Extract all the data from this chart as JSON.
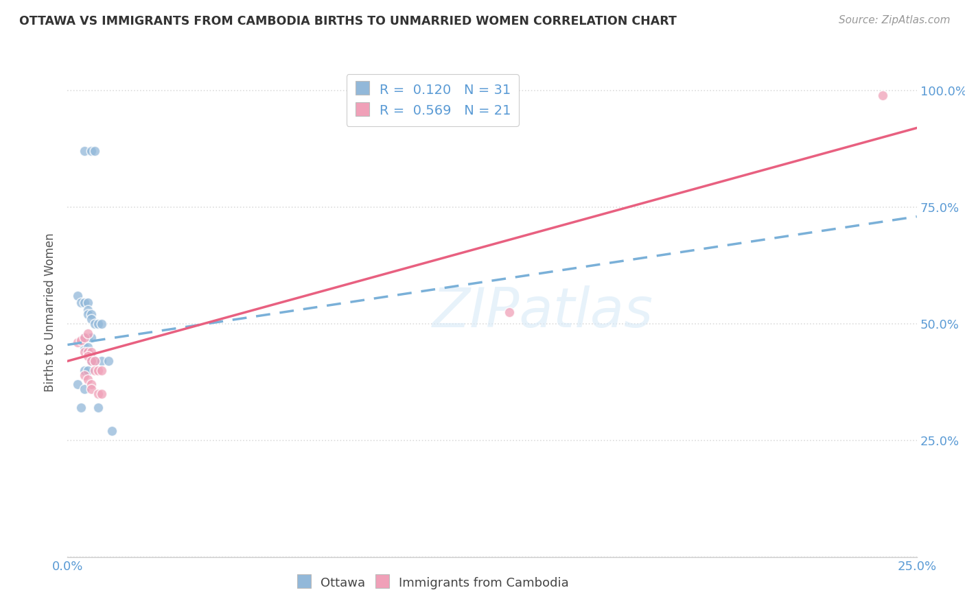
{
  "title": "OTTAWA VS IMMIGRANTS FROM CAMBODIA BIRTHS TO UNMARRIED WOMEN CORRELATION CHART",
  "source": "Source: ZipAtlas.com",
  "ylabel": "Births to Unmarried Women",
  "xlim": [
    0.0,
    0.25
  ],
  "ylim": [
    0.0,
    1.05
  ],
  "xtick_vals": [
    0.0,
    0.05,
    0.1,
    0.15,
    0.2,
    0.25
  ],
  "ytick_vals": [
    0.0,
    0.25,
    0.5,
    0.75,
    1.0
  ],
  "xticklabels": [
    "0.0%",
    "",
    "",
    "",
    "",
    "25.0%"
  ],
  "yticklabels_right": [
    "",
    "25.0%",
    "50.0%",
    "75.0%",
    "100.0%"
  ],
  "ottawa_color": "#92b8d9",
  "cambodia_color": "#f0a0b8",
  "trendline_ottawa_color": "#7ab0d8",
  "trendline_cambodia_color": "#e86080",
  "watermark_text": "ZIPatlas",
  "trendline_ottawa": [
    [
      0.0,
      0.455
    ],
    [
      0.25,
      0.73
    ]
  ],
  "trendline_cambodia": [
    [
      0.0,
      0.42
    ],
    [
      0.25,
      0.92
    ]
  ],
  "ottawa_points": [
    [
      0.005,
      0.87
    ],
    [
      0.007,
      0.87
    ],
    [
      0.008,
      0.87
    ],
    [
      0.003,
      0.56
    ],
    [
      0.004,
      0.545
    ],
    [
      0.005,
      0.545
    ],
    [
      0.006,
      0.545
    ],
    [
      0.006,
      0.53
    ],
    [
      0.006,
      0.52
    ],
    [
      0.007,
      0.52
    ],
    [
      0.007,
      0.51
    ],
    [
      0.008,
      0.5
    ],
    [
      0.009,
      0.5
    ],
    [
      0.01,
      0.5
    ],
    [
      0.005,
      0.47
    ],
    [
      0.006,
      0.47
    ],
    [
      0.007,
      0.47
    ],
    [
      0.005,
      0.45
    ],
    [
      0.006,
      0.45
    ],
    [
      0.007,
      0.43
    ],
    [
      0.007,
      0.42
    ],
    [
      0.008,
      0.42
    ],
    [
      0.01,
      0.42
    ],
    [
      0.012,
      0.42
    ],
    [
      0.005,
      0.4
    ],
    [
      0.006,
      0.4
    ],
    [
      0.003,
      0.37
    ],
    [
      0.005,
      0.36
    ],
    [
      0.004,
      0.32
    ],
    [
      0.009,
      0.32
    ],
    [
      0.013,
      0.27
    ]
  ],
  "cambodia_points": [
    [
      0.003,
      0.46
    ],
    [
      0.004,
      0.465
    ],
    [
      0.005,
      0.47
    ],
    [
      0.006,
      0.48
    ],
    [
      0.005,
      0.44
    ],
    [
      0.006,
      0.44
    ],
    [
      0.007,
      0.44
    ],
    [
      0.006,
      0.43
    ],
    [
      0.007,
      0.42
    ],
    [
      0.008,
      0.42
    ],
    [
      0.008,
      0.4
    ],
    [
      0.009,
      0.4
    ],
    [
      0.01,
      0.4
    ],
    [
      0.005,
      0.39
    ],
    [
      0.006,
      0.38
    ],
    [
      0.007,
      0.37
    ],
    [
      0.007,
      0.36
    ],
    [
      0.009,
      0.35
    ],
    [
      0.01,
      0.35
    ],
    [
      0.13,
      0.525
    ],
    [
      0.24,
      0.99
    ]
  ],
  "background_color": "#ffffff",
  "grid_color": "#dddddd"
}
